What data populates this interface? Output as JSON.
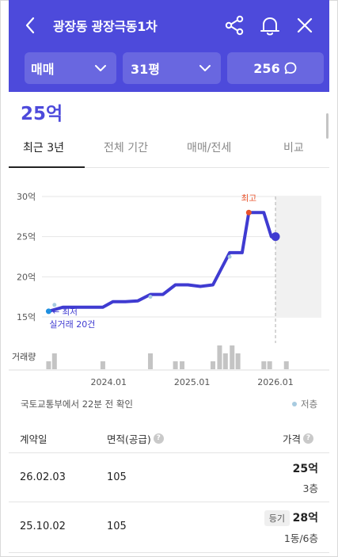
{
  "header": {
    "title": "광장동 광장극동1차",
    "filters": {
      "deal_type": "매매",
      "size": "31평",
      "comments": "256"
    }
  },
  "summary": {
    "price": "25억"
  },
  "tabs": [
    {
      "label": "최근 3년",
      "active": true
    },
    {
      "label": "전체 기간",
      "active": false
    },
    {
      "label": "매매/전세",
      "active": false
    },
    {
      "label": "비교",
      "active": false
    }
  ],
  "chart": {
    "y_tick_labels": [
      "30억",
      "25억",
      "20억",
      "15억"
    ],
    "x_tick_labels": [
      "2024.01",
      "2025.01",
      "2026.01"
    ],
    "volume_label": "거래량",
    "max_marker": "최고",
    "min_marker": "최저",
    "deal_count": "실거래 20건"
  },
  "chart_data": {
    "type": "line",
    "ylabel": "",
    "ylim": [
      15,
      30
    ],
    "y_unit": "억",
    "series": [
      {
        "x": [
          2023.28,
          2023.45,
          2023.6,
          2023.8,
          2023.93,
          2024.05,
          2024.2,
          2024.35,
          2024.5,
          2024.65,
          2024.8,
          2024.95,
          2025.1,
          2025.25,
          2025.45,
          2025.6,
          2025.68,
          2025.78,
          2025.86,
          2025.95,
          2026.0
        ],
        "values": [
          15.7,
          16.2,
          16.2,
          16.2,
          16.2,
          16.9,
          16.9,
          17.0,
          17.8,
          17.8,
          19.0,
          19.0,
          18.8,
          19.0,
          23.0,
          23.0,
          28.0,
          28.0,
          28.0,
          25.0,
          25.0
        ]
      }
    ],
    "low_points": [
      {
        "x": 2023.35,
        "y": 16.5
      },
      {
        "x": 2024.5,
        "y": 17.5
      },
      {
        "x": 2025.45,
        "y": 22.5
      }
    ],
    "volume": {
      "x": [
        2023.28,
        2023.35,
        2023.93,
        2024.5,
        2024.8,
        2024.88,
        2025.25,
        2025.33,
        2025.4,
        2025.48,
        2025.55,
        2025.86,
        2025.93,
        2026.13
      ],
      "values": [
        1,
        2,
        1,
        2,
        1,
        1,
        1,
        3,
        2,
        3,
        2,
        1,
        1,
        1
      ]
    },
    "x_range": [
      2023.2,
      2026.55
    ],
    "current_marker_x": 2026.0,
    "future_shade_from": 2026.0
  },
  "source": {
    "text": "국토교통부에서 22분 전 확인",
    "legend_low": "저층"
  },
  "table": {
    "headers": {
      "date": "계약일",
      "area": "면적(공급)",
      "price": "가격",
      "help": "?"
    },
    "rows": [
      {
        "date": "26.02.03",
        "area": "105",
        "price": "25억",
        "floor": "3층",
        "badge": ""
      },
      {
        "date": "25.10.02",
        "area": "105",
        "price": "28억",
        "floor": "1동/6층",
        "badge": "등기"
      }
    ]
  },
  "colors": {
    "brand": "#4d4adb",
    "line": "#3f3bd1",
    "max_point": "#e8522b",
    "low_point": "#a8cbe0",
    "volume_bar": "#c4c4c4"
  }
}
